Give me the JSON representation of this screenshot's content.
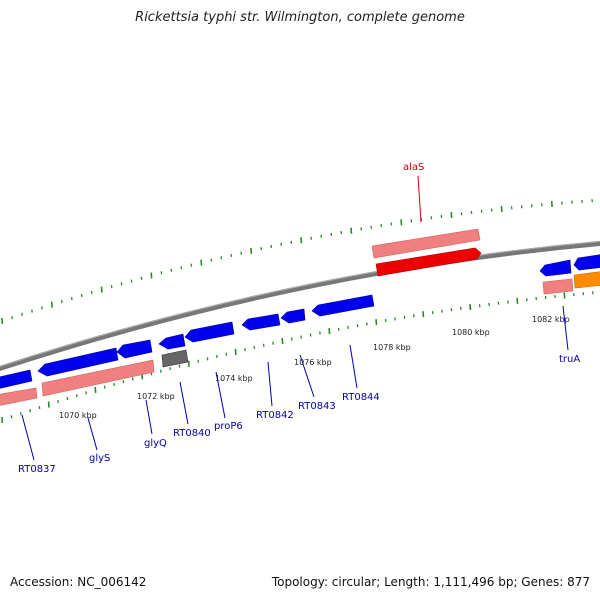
{
  "title": "Rickettsia typhi str. Wilmington, complete genome",
  "footer": {
    "accession": "Accession: NC_006142",
    "summary": "Topology: circular; Length: 1,111,496 bp; Genes: 877"
  },
  "colors": {
    "backbone": "#888888",
    "cds": "#0000ee",
    "rna_gene": "#ee0000",
    "gene": "#f08080",
    "pseudo": "#666666",
    "other": "#ff8c00",
    "tick": "#2a8a2a",
    "label_blue": "#0000aa",
    "label_red": "#cc0000"
  },
  "axis_labels": [
    "1070 kbp",
    "1072 kbp",
    "1074 kbp",
    "1076 kbp",
    "1078 kbp",
    "1080 kbp",
    "1082 kbp"
  ],
  "gene_labels": {
    "alaS": "alaS",
    "truA": "truA",
    "RT0837": "RT0837",
    "glyS": "glyS",
    "glyQ": "glyQ",
    "RT0840": "RT0840",
    "proP6": "proP6",
    "RT0842": "RT0842",
    "RT0843": "RT0843",
    "RT0844": "RT0844"
  }
}
